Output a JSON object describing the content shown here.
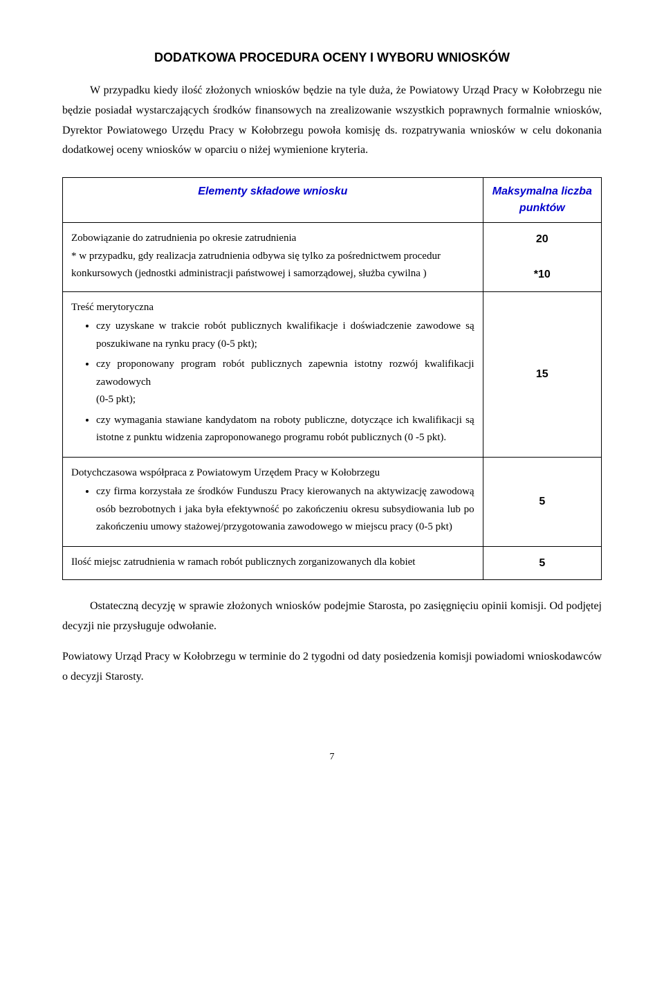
{
  "title": "DODATKOWA PROCEDURA OCENY I WYBORU WNIOSKÓW",
  "intro": "W przypadku kiedy ilość złożonych wniosków będzie na tyle duża, że Powiatowy Urząd Pracy w Kołobrzegu nie będzie posiadał wystarczających środków finansowych na zrealizowanie wszystkich poprawnych formalnie wniosków, Dyrektor Powiatowego Urzędu Pracy w Kołobrzegu powoła komisję ds. rozpatrywania wniosków w celu dokonania dodatkowej oceny wniosków w oparciu o niżej wymienione kryteria.",
  "table": {
    "header_a": "Elementy składowe wniosku",
    "header_b": "Maksymalna liczba punktów",
    "rows": [
      {
        "content_heading": "Zobowiązanie do zatrudnienia po okresie zatrudnienia",
        "content_note": "* w przypadku, gdy realizacja zatrudnienia odbywa się tylko za pośrednictwem procedur konkursowych (jednostki administracji państwowej i samorządowej, służba cywilna )",
        "points_top": "20",
        "points_mid": "*10"
      },
      {
        "content_heading": "Treść merytoryczna",
        "bullets": [
          "czy uzyskane w trakcie robót publicznych kwalifikacje i doświadczenie zawodowe są poszukiwane na rynku pracy (0-5 pkt);",
          "czy proponowany program robót publicznych zapewnia istotny rozwój kwalifikacji zawodowych\n(0-5 pkt);",
          "czy wymagania stawiane kandydatom na roboty publiczne, dotyczące ich kwalifikacji są istotne z punktu widzenia zaproponowanego programu robót publicznych (0 -5 pkt)."
        ],
        "points": "15"
      },
      {
        "content_heading": "Dotychczasowa współpraca z Powiatowym Urzędem Pracy w Kołobrzegu",
        "bullets": [
          "czy firma korzystała ze środków Funduszu Pracy kierowanych na aktywizację zawodową osób bezrobotnych i jaka była efektywność po zakończeniu okresu subsydiowania lub po zakończeniu umowy stażowej/przygotowania zawodowego w miejscu pracy  (0-5 pkt)"
        ],
        "points": "5"
      },
      {
        "content_heading": "Ilość miejsc zatrudnienia w ramach robót publicznych zorganizowanych dla kobiet",
        "points": "5"
      }
    ]
  },
  "closing_para1": "Ostateczną decyzję w sprawie złożonych wniosków podejmie Starosta, po zasięgnięciu opinii komisji. Od podjętej decyzji nie przysługuje odwołanie.",
  "closing_para2": "Powiatowy Urząd Pracy w Kołobrzegu w terminie do 2 tygodni od daty posiedzenia komisji powiadomi wnioskodawców o  decyzji Starosty.",
  "page_number": "7"
}
